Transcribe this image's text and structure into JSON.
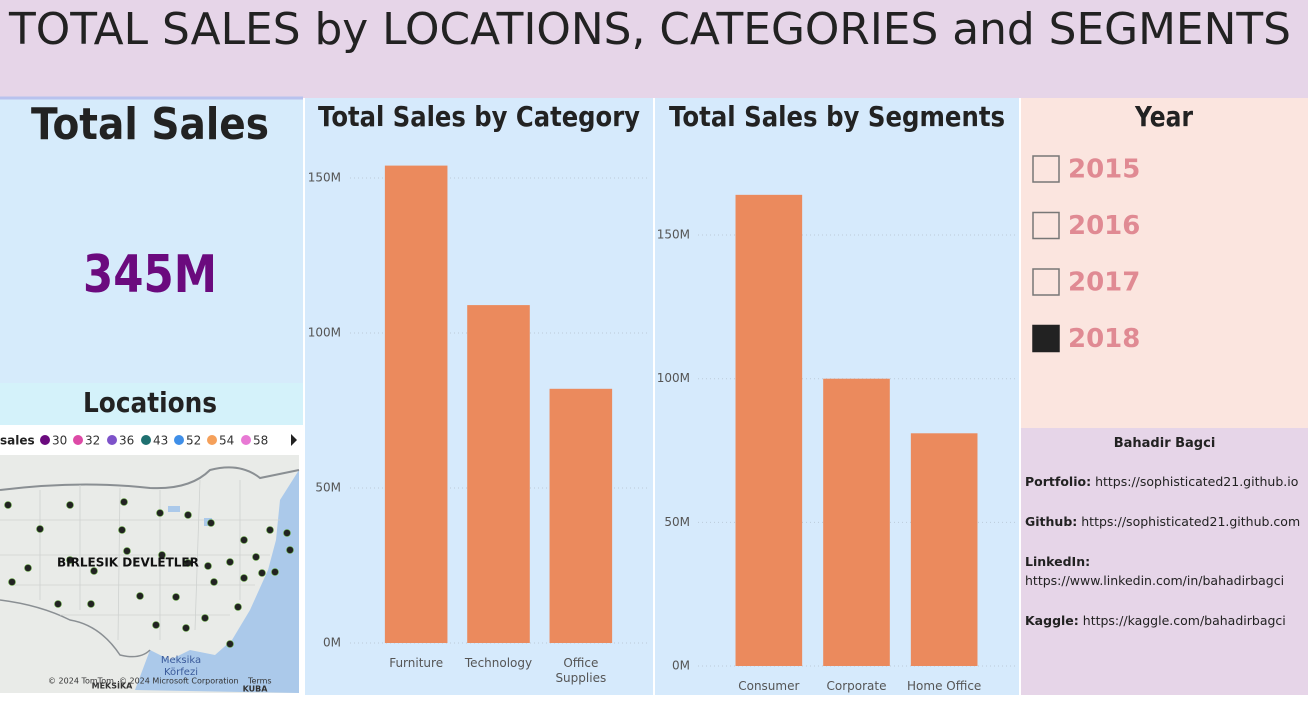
{
  "header": {
    "title": "TOTAL SALES by LOCATIONS, CATEGORIES and SEGMENTS"
  },
  "kpi": {
    "label": "Total Sales",
    "value": "345M"
  },
  "map": {
    "title": "Locations",
    "legend_title": "sales",
    "legend": [
      {
        "label": "30",
        "color": "#6b0a7e"
      },
      {
        "label": "32",
        "color": "#dd4aa6"
      },
      {
        "label": "36",
        "color": "#7d52c9"
      },
      {
        "label": "43",
        "color": "#1f7070"
      },
      {
        "label": "52",
        "color": "#3f8fe8"
      },
      {
        "label": "54",
        "color": "#f5a05a"
      },
      {
        "label": "58",
        "color": "#e879d4"
      }
    ],
    "labels": [
      "BIRLESIK DEVLETLER",
      "Meksika",
      "Körfezi",
      "MEKSİKA",
      "KUBA"
    ],
    "attribution": "© 2024 TomTom, © 2024 Microsoft Corporation",
    "terms": "Terms"
  },
  "chart_data": [
    {
      "type": "bar",
      "title": "Total Sales by Category",
      "categories": [
        "Furniture",
        "Technology",
        "Office Supplies"
      ],
      "values": [
        154,
        109,
        82
      ],
      "color": "#eb8a5d",
      "ylim": [
        0,
        160
      ],
      "yticks": [
        {
          "value": 0,
          "label": "0M"
        },
        {
          "value": 50,
          "label": "50M"
        },
        {
          "value": 100,
          "label": "100M"
        },
        {
          "value": 150,
          "label": "150M"
        }
      ],
      "grid": true
    },
    {
      "type": "bar",
      "title": "Total Sales by Segments",
      "categories": [
        "Consumer",
        "Corporate",
        "Home Office"
      ],
      "values": [
        164,
        100,
        81
      ],
      "color": "#eb8a5d",
      "ylim": [
        0,
        170
      ],
      "yticks": [
        {
          "value": 0,
          "label": "0M"
        },
        {
          "value": 50,
          "label": "50M"
        },
        {
          "value": 100,
          "label": "100M"
        },
        {
          "value": 150,
          "label": "150M"
        }
      ],
      "grid": true
    }
  ],
  "slicer": {
    "title": "Year",
    "items": [
      {
        "label": "2015",
        "checked": false
      },
      {
        "label": "2016",
        "checked": false
      },
      {
        "label": "2017",
        "checked": false
      },
      {
        "label": "2018",
        "checked": true
      }
    ]
  },
  "profile": {
    "name": "Bahadir Bagci",
    "links": [
      {
        "label": "Portfolio:",
        "value": "https://sophisticated21.github.io"
      },
      {
        "label": "Github:",
        "value": "https://sophisticated21.github.com"
      },
      {
        "label": "LinkedIn:",
        "value": "https://www.linkedin.com/in/bahadirbagci"
      },
      {
        "label": "Kaggle:",
        "value": "https://kaggle.com/bahadirbagci"
      }
    ]
  }
}
